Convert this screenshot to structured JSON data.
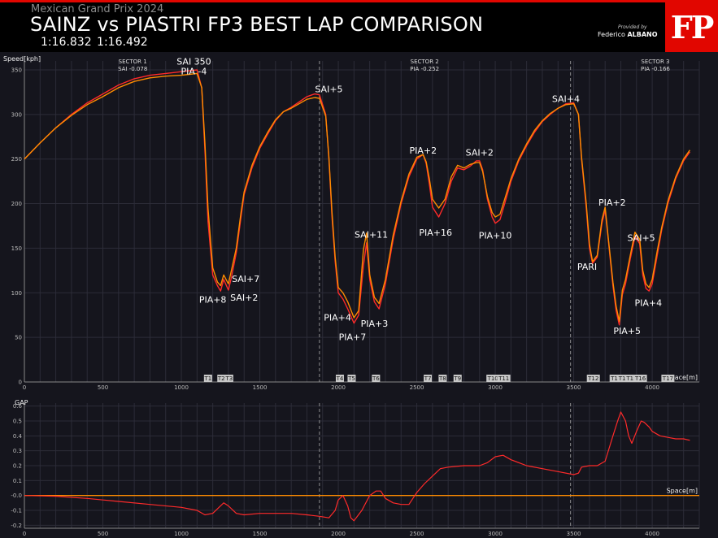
{
  "header": {
    "subtitle": "Mexican Grand Prix 2024",
    "title": "SAINZ vs PIASTRI FP3 BEST LAP COMPARISON",
    "lap_times": "1:16.832   1:16.492",
    "provided_by": "Provided by",
    "author_first": "Federico",
    "author_last": "ALBANO",
    "logo": "FP"
  },
  "colors": {
    "sainz": "#ff2a2a",
    "piastri": "#ff8c00",
    "gap": "#ff2a2a",
    "zero": "#ff8c00",
    "accent": "#e10600"
  },
  "chart_data": [
    {
      "type": "line",
      "ylabel": "Speed[kph]",
      "xlabel": "Space[m]",
      "xlim": [
        0,
        4300
      ],
      "ylim": [
        0,
        360
      ],
      "xticks": [
        0,
        500,
        1000,
        1500,
        2000,
        2500,
        3000,
        3500,
        4000
      ],
      "yticks": [
        0,
        50,
        100,
        150,
        200,
        250,
        300,
        350
      ],
      "grid": true,
      "sector_lines": [
        1880,
        3480
      ],
      "sectors": [
        {
          "x": 690,
          "name": "SECTOR 1",
          "delta": "SAI -0.078"
        },
        {
          "x": 2550,
          "name": "SECTOR 2",
          "delta": "PIA -0.252"
        },
        {
          "x": 4020,
          "name": "SECTOR 3",
          "delta": "PIA -0.166"
        }
      ],
      "corners": [
        {
          "x": 1170,
          "label": "T1"
        },
        {
          "x": 1255,
          "label": "T2"
        },
        {
          "x": 1305,
          "label": "T3"
        },
        {
          "x": 2010,
          "label": "T4"
        },
        {
          "x": 2085,
          "label": "T5"
        },
        {
          "x": 2240,
          "label": "T6"
        },
        {
          "x": 2570,
          "label": "T7"
        },
        {
          "x": 2665,
          "label": "T8"
        },
        {
          "x": 2760,
          "label": "T9"
        },
        {
          "x": 2985,
          "label": "T10"
        },
        {
          "x": 3055,
          "label": "T11"
        },
        {
          "x": 3625,
          "label": "T12"
        },
        {
          "x": 3770,
          "label": "T13"
        },
        {
          "x": 3820,
          "label": "T14"
        },
        {
          "x": 3870,
          "label": "T15"
        },
        {
          "x": 3925,
          "label": "T16"
        },
        {
          "x": 4100,
          "label": "T17"
        }
      ],
      "annotations": [
        {
          "x": 1080,
          "y": 356,
          "text": "SAI 350"
        },
        {
          "x": 1080,
          "y": 345,
          "text": "PIA -4"
        },
        {
          "x": 1200,
          "y": 89,
          "text": "PIA+8"
        },
        {
          "x": 1410,
          "y": 112,
          "text": "SAI+7"
        },
        {
          "x": 1400,
          "y": 91,
          "text": "SAI+2"
        },
        {
          "x": 1940,
          "y": 325,
          "text": "SAI+5"
        },
        {
          "x": 1995,
          "y": 69,
          "text": "PIA+4"
        },
        {
          "x": 2090,
          "y": 47,
          "text": "PIA+7"
        },
        {
          "x": 2210,
          "y": 162,
          "text": "SAI+11"
        },
        {
          "x": 2230,
          "y": 62,
          "text": "PIA+3"
        },
        {
          "x": 2540,
          "y": 256,
          "text": "PIA+2"
        },
        {
          "x": 2620,
          "y": 164,
          "text": "PIA+16"
        },
        {
          "x": 2900,
          "y": 254,
          "text": "SAI+2"
        },
        {
          "x": 3000,
          "y": 161,
          "text": "PIA+10"
        },
        {
          "x": 3450,
          "y": 314,
          "text": "SAI+4"
        },
        {
          "x": 3585,
          "y": 126,
          "text": "PARI"
        },
        {
          "x": 3745,
          "y": 198,
          "text": "PIA+2"
        },
        {
          "x": 3930,
          "y": 158,
          "text": "SAI+5"
        },
        {
          "x": 3975,
          "y": 85,
          "text": "PIA+4"
        },
        {
          "x": 3840,
          "y": 54,
          "text": "PIA+5"
        }
      ],
      "series": [
        {
          "name": "SAI",
          "x": [
            0,
            100,
            200,
            300,
            400,
            500,
            600,
            700,
            800,
            900,
            1000,
            1050,
            1100,
            1130,
            1150,
            1170,
            1200,
            1230,
            1250,
            1270,
            1300,
            1320,
            1350,
            1380,
            1400,
            1450,
            1500,
            1550,
            1600,
            1650,
            1700,
            1750,
            1800,
            1850,
            1880,
            1920,
            1940,
            1960,
            1980,
            2000,
            2030,
            2060,
            2100,
            2130,
            2160,
            2180,
            2200,
            2230,
            2260,
            2300,
            2350,
            2400,
            2450,
            2500,
            2540,
            2560,
            2580,
            2600,
            2640,
            2680,
            2720,
            2760,
            2800,
            2840,
            2880,
            2900,
            2920,
            2950,
            2980,
            3000,
            3030,
            3060,
            3100,
            3150,
            3200,
            3250,
            3300,
            3350,
            3400,
            3450,
            3500,
            3530,
            3550,
            3580,
            3600,
            3620,
            3650,
            3680,
            3700,
            3720,
            3750,
            3770,
            3790,
            3810,
            3830,
            3860,
            3890,
            3920,
            3940,
            3960,
            3980,
            4000,
            4030,
            4060,
            4100,
            4150,
            4200,
            4240
          ],
          "y": [
            250,
            268,
            285,
            300,
            313,
            323,
            333,
            340,
            344,
            346,
            348,
            349,
            350,
            330,
            260,
            180,
            120,
            108,
            102,
            115,
            103,
            118,
            145,
            185,
            210,
            240,
            262,
            278,
            293,
            303,
            308,
            314,
            320,
            323,
            322,
            300,
            250,
            185,
            135,
            100,
            93,
            82,
            66,
            75,
            130,
            156,
            115,
            90,
            82,
            110,
            160,
            200,
            230,
            250,
            255,
            245,
            222,
            196,
            185,
            200,
            225,
            240,
            238,
            242,
            248,
            248,
            238,
            205,
            185,
            178,
            182,
            200,
            225,
            248,
            265,
            280,
            292,
            300,
            307,
            312,
            313,
            300,
            250,
            195,
            150,
            133,
            140,
            178,
            193,
            160,
            108,
            80,
            64,
            98,
            110,
            138,
            163,
            155,
            120,
            105,
            102,
            110,
            140,
            170,
            200,
            228,
            248,
            258
          ]
        },
        {
          "name": "PIA",
          "x": [
            0,
            100,
            200,
            300,
            400,
            500,
            600,
            700,
            800,
            900,
            1000,
            1050,
            1100,
            1130,
            1150,
            1170,
            1200,
            1230,
            1250,
            1270,
            1300,
            1320,
            1350,
            1380,
            1400,
            1450,
            1500,
            1550,
            1600,
            1650,
            1700,
            1750,
            1800,
            1850,
            1880,
            1920,
            1940,
            1960,
            1980,
            2000,
            2030,
            2060,
            2100,
            2130,
            2160,
            2180,
            2200,
            2230,
            2260,
            2300,
            2350,
            2400,
            2450,
            2500,
            2540,
            2560,
            2580,
            2600,
            2640,
            2680,
            2720,
            2760,
            2800,
            2840,
            2880,
            2900,
            2920,
            2950,
            2980,
            3000,
            3030,
            3060,
            3100,
            3150,
            3200,
            3250,
            3300,
            3350,
            3400,
            3450,
            3500,
            3530,
            3550,
            3580,
            3600,
            3620,
            3650,
            3680,
            3700,
            3720,
            3750,
            3770,
            3790,
            3810,
            3830,
            3860,
            3890,
            3920,
            3940,
            3960,
            3980,
            4000,
            4030,
            4060,
            4100,
            4150,
            4200,
            4240
          ],
          "y": [
            250,
            268,
            285,
            299,
            311,
            320,
            330,
            337,
            341,
            343,
            344,
            345,
            346,
            330,
            268,
            195,
            128,
            112,
            108,
            120,
            110,
            126,
            150,
            190,
            213,
            243,
            264,
            280,
            294,
            303,
            307,
            312,
            317,
            319,
            318,
            298,
            252,
            190,
            140,
            106,
            100,
            90,
            72,
            80,
            148,
            167,
            120,
            95,
            88,
            115,
            165,
            203,
            233,
            252,
            255,
            247,
            228,
            205,
            195,
            205,
            230,
            243,
            240,
            244,
            246,
            246,
            236,
            208,
            190,
            185,
            188,
            205,
            228,
            250,
            267,
            282,
            293,
            301,
            307,
            311,
            312,
            300,
            252,
            200,
            155,
            135,
            142,
            182,
            196,
            162,
            112,
            85,
            68,
            103,
            115,
            142,
            168,
            160,
            125,
            110,
            106,
            115,
            145,
            173,
            203,
            230,
            250,
            260
          ]
        }
      ]
    },
    {
      "type": "line",
      "ylabel": "GAP",
      "xlabel": "Space[m]",
      "xlim": [
        0,
        4300
      ],
      "ylim": [
        -0.22,
        0.62
      ],
      "xticks": [
        0,
        500,
        1000,
        1500,
        2000,
        2500,
        3000,
        3500,
        4000
      ],
      "yticks": [
        -0.2,
        -0.1,
        0.0,
        0.1,
        0.2,
        0.3,
        0.4,
        0.5,
        0.6
      ],
      "ytick_labels": [
        "-0.2",
        "-0.1",
        "-0.0",
        "0.1",
        "0.2",
        "0.3",
        "0.4",
        "0.5",
        "0.6"
      ],
      "grid": true,
      "sector_lines": [
        1880,
        3480
      ],
      "series": [
        {
          "name": "GAP",
          "x": [
            0,
            200,
            400,
            600,
            800,
            1000,
            1100,
            1150,
            1200,
            1240,
            1270,
            1300,
            1350,
            1400,
            1500,
            1600,
            1700,
            1800,
            1880,
            1940,
            1980,
            2000,
            2030,
            2060,
            2080,
            2100,
            2150,
            2180,
            2200,
            2240,
            2270,
            2300,
            2350,
            2400,
            2450,
            2500,
            2550,
            2600,
            2650,
            2700,
            2800,
            2900,
            2950,
            3000,
            3050,
            3100,
            3200,
            3300,
            3400,
            3500,
            3530,
            3550,
            3600,
            3650,
            3700,
            3750,
            3780,
            3800,
            3830,
            3850,
            3870,
            3900,
            3930,
            3950,
            3980,
            4000,
            4050,
            4100,
            4150,
            4200,
            4240
          ],
          "y": [
            0.0,
            -0.005,
            -0.02,
            -0.04,
            -0.06,
            -0.08,
            -0.1,
            -0.13,
            -0.12,
            -0.08,
            -0.05,
            -0.07,
            -0.12,
            -0.13,
            -0.12,
            -0.12,
            -0.12,
            -0.13,
            -0.14,
            -0.15,
            -0.1,
            -0.03,
            0.0,
            -0.07,
            -0.15,
            -0.17,
            -0.1,
            -0.04,
            0.0,
            0.03,
            0.03,
            -0.02,
            -0.05,
            -0.06,
            -0.06,
            0.02,
            0.08,
            0.13,
            0.18,
            0.19,
            0.2,
            0.2,
            0.22,
            0.26,
            0.27,
            0.24,
            0.2,
            0.18,
            0.16,
            0.14,
            0.15,
            0.19,
            0.2,
            0.2,
            0.23,
            0.4,
            0.5,
            0.56,
            0.5,
            0.4,
            0.35,
            0.43,
            0.5,
            0.49,
            0.46,
            0.43,
            0.4,
            0.39,
            0.38,
            0.38,
            0.37
          ]
        }
      ]
    }
  ]
}
